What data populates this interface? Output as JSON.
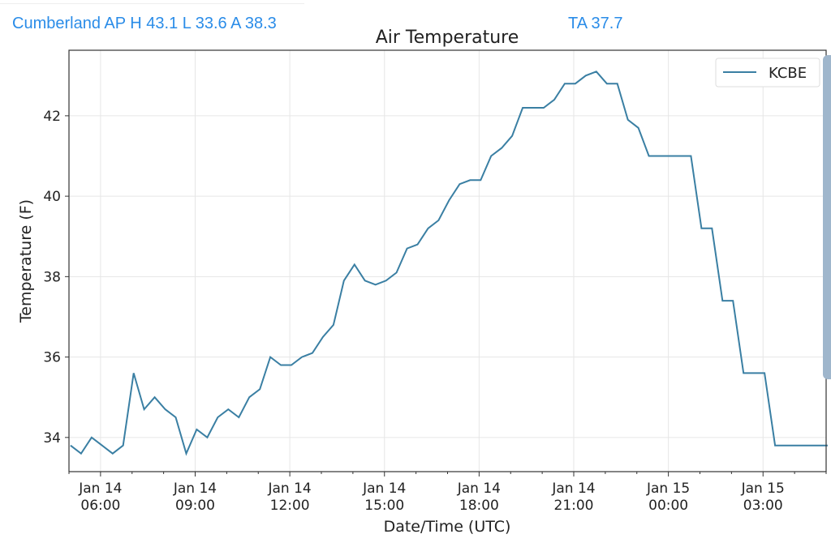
{
  "header": {
    "station_summary": "Cumberland AP H 43.1 L 33.6 A 38.3",
    "ta": "TA 37.7"
  },
  "colors": {
    "header_text": "#2a8ce8",
    "series": "#3a7fa3"
  },
  "chart_data": {
    "type": "line",
    "title": "Air Temperature",
    "xlabel": "Date/Time (UTC)",
    "ylabel": "Temperature (F)",
    "xunit": "hours since Jan 14 00:00 UTC",
    "xlim": [
      5.0,
      29.0
    ],
    "ylim": [
      33.15,
      43.63
    ],
    "grid": true,
    "legend": {
      "position": "top-right",
      "entries": [
        "KCBE"
      ]
    },
    "yticks": [
      34,
      36,
      38,
      40,
      42
    ],
    "ytick_labels": [
      "34",
      "36",
      "38",
      "40",
      "42"
    ],
    "xticks": [
      6,
      9,
      12,
      15,
      18,
      21,
      24,
      27
    ],
    "xtick_labels": [
      [
        "Jan 14",
        "06:00"
      ],
      [
        "Jan 14",
        "09:00"
      ],
      [
        "Jan 14",
        "12:00"
      ],
      [
        "Jan 14",
        "15:00"
      ],
      [
        "Jan 14",
        "18:00"
      ],
      [
        "Jan 14",
        "21:00"
      ],
      [
        "Jan 15",
        "00:00"
      ],
      [
        "Jan 15",
        "03:00"
      ]
    ],
    "series": [
      {
        "name": "KCBE",
        "x_start": 5.05,
        "x_step": 0.3333,
        "values": [
          33.8,
          33.6,
          34.0,
          33.8,
          33.6,
          33.8,
          35.6,
          34.7,
          35.0,
          34.7,
          34.5,
          33.6,
          34.2,
          34.0,
          34.5,
          34.7,
          34.5,
          35.0,
          35.2,
          36.0,
          35.8,
          35.8,
          36.0,
          36.1,
          36.5,
          36.8,
          37.9,
          38.3,
          37.9,
          37.8,
          37.9,
          38.1,
          38.7,
          38.8,
          39.2,
          39.4,
          39.9,
          40.3,
          40.4,
          40.4,
          41.0,
          41.2,
          41.5,
          42.2,
          42.2,
          42.2,
          42.4,
          42.8,
          42.8,
          43.0,
          43.1,
          42.8,
          42.8,
          41.9,
          41.7,
          41.0,
          41.0,
          41.0,
          41.0,
          41.0,
          39.2,
          39.2,
          37.4,
          37.4,
          35.6,
          35.6,
          35.6,
          33.8,
          33.8,
          33.8,
          33.8,
          33.8,
          33.8
        ]
      }
    ]
  }
}
